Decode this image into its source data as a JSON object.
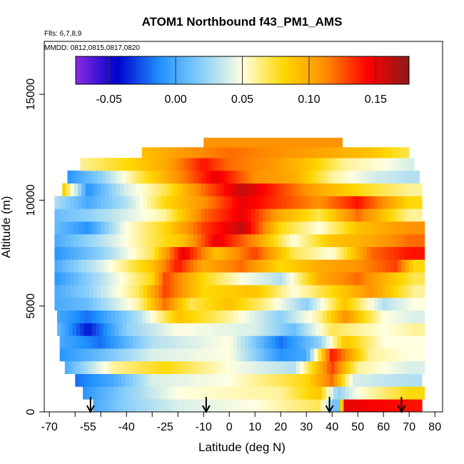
{
  "chart_data": {
    "type": "heatmap",
    "title": "ATOM1 Northbound f43_PM1_AMS",
    "flights_label": "Flts: 6,7,8,9",
    "dates_label": "MMDD: 0812,0815,0817,0820",
    "xlabel": "Latitude (deg N)",
    "ylabel": "Altitude (m)",
    "xlim": [
      -72,
      83
    ],
    "ylim": [
      0,
      17500
    ],
    "x_ticks": [
      -70,
      -60,
      -50,
      -40,
      -30,
      -20,
      -10,
      0,
      10,
      20,
      30,
      40,
      50,
      60,
      70,
      80
    ],
    "x_tick_labels": [
      "-70",
      "-55",
      "-40",
      "-25",
      "-10",
      "0",
      "10",
      "20",
      "30",
      "40",
      "50",
      "60",
      "70",
      "80"
    ],
    "x_tick_label_values": [
      -70,
      -55,
      -40,
      -25,
      -10,
      0,
      10,
      20,
      30,
      40,
      50,
      60,
      70,
      80
    ],
    "y_ticks": [
      0,
      5000,
      10000,
      15000
    ],
    "y_tick_labels": [
      "0",
      "5000",
      "10000",
      "15000"
    ],
    "colorbar": {
      "range": [
        -0.075,
        0.175
      ],
      "ticks": [
        -0.05,
        0.0,
        0.05,
        0.1,
        0.15
      ],
      "tick_labels": [
        "-0.05",
        "0.00",
        "0.05",
        "0.10",
        "0.15"
      ],
      "colors": [
        "#8a2be2",
        "#0000cd",
        "#1e90ff",
        "#87cefa",
        "#ffffe0",
        "#ffd700",
        "#ff8c00",
        "#ff0000",
        "#8b1a1a"
      ]
    },
    "arrows_latitude": [
      -54,
      -9,
      39,
      67
    ],
    "layers": [
      {
        "ymin": 0,
        "ymax": 600,
        "x0": -53,
        "x1": 75,
        "stops": [
          [
            -53,
            0.0
          ],
          [
            -40,
            0.02
          ],
          [
            -20,
            0.04
          ],
          [
            10,
            0.05
          ],
          [
            35,
            0.07
          ],
          [
            42,
            0.0
          ],
          [
            45,
            0.15
          ],
          [
            70,
            0.14
          ]
        ]
      },
      {
        "ymin": 600,
        "ymax": 1200,
        "x0": -57,
        "x1": 76,
        "stops": [
          [
            -57,
            -0.01
          ],
          [
            -40,
            0.02
          ],
          [
            -20,
            0.05
          ],
          [
            20,
            0.06
          ],
          [
            35,
            0.09
          ],
          [
            42,
            0.02
          ],
          [
            50,
            0.05
          ],
          [
            70,
            0.08
          ]
        ]
      },
      {
        "ymin": 1200,
        "ymax": 1800,
        "x0": -60,
        "x1": 75,
        "stops": [
          [
            -60,
            -0.02
          ],
          [
            -45,
            0.0
          ],
          [
            -30,
            0.04
          ],
          [
            0,
            0.05
          ],
          [
            30,
            0.08
          ],
          [
            40,
            0.12
          ],
          [
            48,
            0.04
          ],
          [
            70,
            0.03
          ]
        ]
      },
      {
        "ymin": 1800,
        "ymax": 2400,
        "x0": -64,
        "x1": 76,
        "stops": [
          [
            -64,
            0.0
          ],
          [
            -45,
            0.06
          ],
          [
            -25,
            0.08
          ],
          [
            0,
            0.05
          ],
          [
            25,
            0.03
          ],
          [
            40,
            0.13
          ],
          [
            50,
            0.06
          ],
          [
            70,
            0.04
          ]
        ]
      },
      {
        "ymin": 2400,
        "ymax": 3000,
        "x0": -66,
        "x1": 76,
        "stops": [
          [
            -66,
            -0.01
          ],
          [
            -50,
            0.01
          ],
          [
            -30,
            0.04
          ],
          [
            0,
            0.05
          ],
          [
            20,
            -0.01
          ],
          [
            30,
            0.0
          ],
          [
            40,
            0.14
          ],
          [
            55,
            0.06
          ],
          [
            70,
            0.05
          ]
        ]
      },
      {
        "ymin": 3000,
        "ymax": 3600,
        "x0": -66,
        "x1": 76,
        "stops": [
          [
            -66,
            0.0
          ],
          [
            -50,
            -0.02
          ],
          [
            -30,
            0.03
          ],
          [
            0,
            0.05
          ],
          [
            20,
            -0.02
          ],
          [
            35,
            0.02
          ],
          [
            45,
            0.09
          ],
          [
            60,
            0.05
          ],
          [
            72,
            0.05
          ]
        ]
      },
      {
        "ymin": 3600,
        "ymax": 4200,
        "x0": -67,
        "x1": 76,
        "stops": [
          [
            -67,
            0.01
          ],
          [
            -55,
            -0.04
          ],
          [
            -40,
            0.02
          ],
          [
            -20,
            0.05
          ],
          [
            10,
            0.04
          ],
          [
            25,
            0.01
          ],
          [
            40,
            0.07
          ],
          [
            60,
            0.05
          ],
          [
            72,
            0.06
          ]
        ]
      },
      {
        "ymin": 4200,
        "ymax": 4800,
        "x0": -67,
        "x1": 76,
        "stops": [
          [
            -67,
            0.0
          ],
          [
            -55,
            -0.02
          ],
          [
            -35,
            0.03
          ],
          [
            -20,
            0.09
          ],
          [
            0,
            0.06
          ],
          [
            20,
            0.02
          ],
          [
            35,
            0.06
          ],
          [
            45,
            0.11
          ],
          [
            60,
            0.05
          ],
          [
            72,
            0.04
          ]
        ]
      },
      {
        "ymin": 4800,
        "ymax": 5400,
        "x0": -68,
        "x1": 76,
        "stops": [
          [
            -68,
            0.0
          ],
          [
            -55,
            0.01
          ],
          [
            -35,
            0.06
          ],
          [
            -25,
            0.12
          ],
          [
            -15,
            0.07
          ],
          [
            0,
            0.09
          ],
          [
            15,
            0.06
          ],
          [
            30,
            0.02
          ],
          [
            45,
            0.09
          ],
          [
            60,
            0.03
          ],
          [
            72,
            0.05
          ]
        ]
      },
      {
        "ymin": 5400,
        "ymax": 6000,
        "x0": -68,
        "x1": 76,
        "stops": [
          [
            -68,
            0.0
          ],
          [
            -55,
            0.02
          ],
          [
            -35,
            0.07
          ],
          [
            -25,
            0.13
          ],
          [
            -10,
            0.08
          ],
          [
            10,
            0.09
          ],
          [
            25,
            0.05
          ],
          [
            40,
            0.08
          ],
          [
            55,
            0.11
          ],
          [
            72,
            0.06
          ]
        ]
      },
      {
        "ymin": 6000,
        "ymax": 6600,
        "x0": -68,
        "x1": 76,
        "stops": [
          [
            -68,
            -0.01
          ],
          [
            -50,
            0.03
          ],
          [
            -30,
            0.08
          ],
          [
            -25,
            0.13
          ],
          [
            -10,
            0.08
          ],
          [
            5,
            0.05
          ],
          [
            20,
            0.03
          ],
          [
            35,
            0.1
          ],
          [
            50,
            0.12
          ],
          [
            72,
            0.07
          ]
        ]
      },
      {
        "ymin": 6600,
        "ymax": 7200,
        "x0": -68,
        "x1": 76,
        "stops": [
          [
            -68,
            0.0
          ],
          [
            -50,
            0.04
          ],
          [
            -30,
            0.09
          ],
          [
            -20,
            0.14
          ],
          [
            -10,
            0.1
          ],
          [
            5,
            0.12
          ],
          [
            20,
            0.08
          ],
          [
            35,
            0.1
          ],
          [
            50,
            0.11
          ],
          [
            65,
            0.13
          ],
          [
            72,
            0.08
          ]
        ]
      },
      {
        "ymin": 7200,
        "ymax": 7800,
        "x0": -68,
        "x1": 76,
        "stops": [
          [
            -68,
            -0.01
          ],
          [
            -50,
            0.02
          ],
          [
            -30,
            0.07
          ],
          [
            -18,
            0.15
          ],
          [
            -5,
            0.09
          ],
          [
            10,
            0.13
          ],
          [
            25,
            0.07
          ],
          [
            40,
            0.05
          ],
          [
            55,
            0.12
          ],
          [
            70,
            0.14
          ]
        ]
      },
      {
        "ymin": 7800,
        "ymax": 8400,
        "x0": -68,
        "x1": 76,
        "stops": [
          [
            -68,
            0.0
          ],
          [
            -50,
            0.03
          ],
          [
            -30,
            0.07
          ],
          [
            -18,
            0.09
          ],
          [
            -5,
            0.15
          ],
          [
            10,
            0.11
          ],
          [
            25,
            0.05
          ],
          [
            40,
            0.09
          ],
          [
            55,
            0.1
          ],
          [
            70,
            0.12
          ]
        ]
      },
      {
        "ymin": 8400,
        "ymax": 9000,
        "x0": -68,
        "x1": 76,
        "stops": [
          [
            -68,
            0.01
          ],
          [
            -55,
            -0.01
          ],
          [
            -40,
            0.05
          ],
          [
            -25,
            0.08
          ],
          [
            -10,
            0.13
          ],
          [
            5,
            0.16
          ],
          [
            20,
            0.08
          ],
          [
            35,
            0.05
          ],
          [
            50,
            0.09
          ],
          [
            70,
            0.11
          ]
        ]
      },
      {
        "ymin": 9000,
        "ymax": 9600,
        "x0": -68,
        "x1": 75,
        "stops": [
          [
            -68,
            0.01
          ],
          [
            -55,
            0.02
          ],
          [
            -40,
            0.04
          ],
          [
            -25,
            0.06
          ],
          [
            -10,
            0.12
          ],
          [
            5,
            0.15
          ],
          [
            20,
            0.1
          ],
          [
            35,
            0.07
          ],
          [
            50,
            0.12
          ],
          [
            70,
            0.06
          ]
        ]
      },
      {
        "ymin": 9600,
        "ymax": 10200,
        "x0": -68,
        "x1": 75,
        "stops": [
          [
            -68,
            0.03
          ],
          [
            -55,
            0.0
          ],
          [
            -40,
            0.03
          ],
          [
            -25,
            0.08
          ],
          [
            -10,
            0.11
          ],
          [
            5,
            0.15
          ],
          [
            20,
            0.13
          ],
          [
            35,
            0.11
          ],
          [
            50,
            0.14
          ],
          [
            70,
            0.08
          ]
        ]
      },
      {
        "ymin": 10200,
        "ymax": 10800,
        "x0": -65,
        "x1": 75,
        "stops": [
          [
            -65,
            0.09
          ],
          [
            -55,
            -0.01
          ],
          [
            -40,
            0.04
          ],
          [
            -25,
            0.07
          ],
          [
            -10,
            0.12
          ],
          [
            5,
            0.16
          ],
          [
            20,
            0.13
          ],
          [
            35,
            0.1
          ],
          [
            50,
            0.08
          ],
          [
            70,
            0.06
          ]
        ]
      },
      {
        "ymin": 10800,
        "ymax": 11400,
        "x0": -63,
        "x1": 74,
        "stops": [
          [
            -63,
            -0.01
          ],
          [
            -50,
            0.02
          ],
          [
            -35,
            0.07
          ],
          [
            -20,
            0.11
          ],
          [
            -5,
            0.15
          ],
          [
            10,
            0.11
          ],
          [
            25,
            0.1
          ],
          [
            40,
            0.06
          ],
          [
            55,
            0.04
          ],
          [
            70,
            0.03
          ]
        ]
      },
      {
        "ymin": 11400,
        "ymax": 12000,
        "x0": -58,
        "x1": 72,
        "stops": [
          [
            -58,
            0.06
          ],
          [
            -40,
            0.08
          ],
          [
            -25,
            0.1
          ],
          [
            -10,
            0.14
          ],
          [
            0,
            0.12
          ],
          [
            15,
            0.11
          ],
          [
            30,
            0.09
          ],
          [
            45,
            0.06
          ],
          [
            60,
            0.05
          ],
          [
            70,
            0.04
          ]
        ]
      },
      {
        "ymin": 12000,
        "ymax": 12500,
        "x0": -34,
        "x1": 70,
        "stops": [
          [
            -34,
            0.09
          ],
          [
            -15,
            0.11
          ],
          [
            0,
            0.12
          ],
          [
            20,
            0.11
          ],
          [
            40,
            0.1
          ],
          [
            55,
            0.09
          ],
          [
            70,
            0.07
          ]
        ]
      },
      {
        "ymin": 12500,
        "ymax": 12950,
        "x0": -10,
        "x1": 44,
        "stops": [
          [
            -10,
            0.11
          ],
          [
            10,
            0.11
          ],
          [
            30,
            0.11
          ],
          [
            44,
            0.11
          ]
        ]
      }
    ]
  }
}
